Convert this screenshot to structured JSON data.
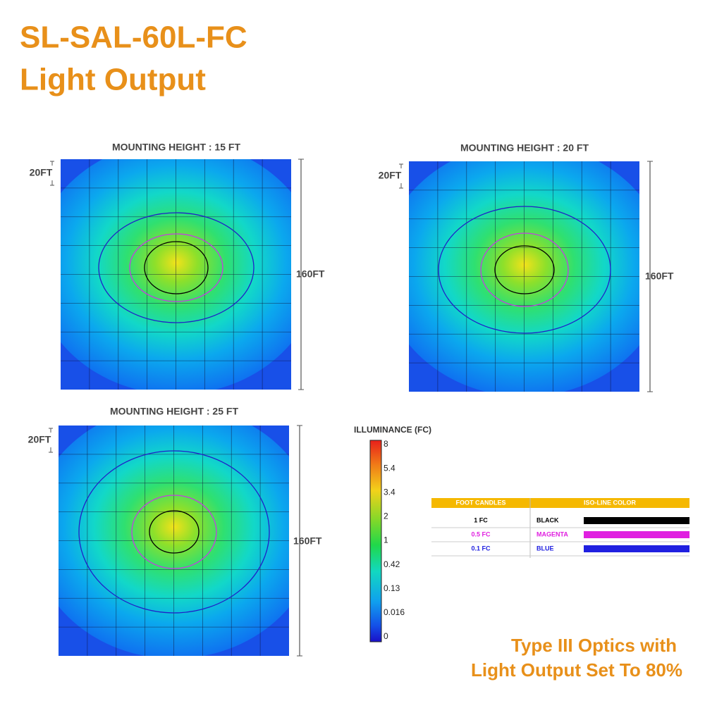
{
  "header": {
    "title_line1": "SL-SAL-60L-FC",
    "title_line2": "Light Output"
  },
  "plots": [
    {
      "title": "MOUNTING HEIGHT : 15 FT",
      "scale_label": "20FT",
      "size_label": "160FT"
    },
    {
      "title": "MOUNTING HEIGHT : 20 FT",
      "scale_label": "20FT",
      "size_label": "160FT"
    },
    {
      "title": "MOUNTING HEIGHT : 25 FT",
      "scale_label": "20FT",
      "size_label": "160FT"
    }
  ],
  "colorbar": {
    "title": "ILLUMINANCE (FC)",
    "ticks": [
      "8",
      "5.4",
      "3.4",
      "2",
      "1",
      "0.42",
      "0.13",
      "0.016",
      "0"
    ]
  },
  "legend_table": {
    "headers": [
      "FOOT CANDLES",
      "ISO-LINE COLOR"
    ],
    "rows": [
      [
        "1 FC",
        "BLACK"
      ],
      [
        "0.5 FC",
        "MAGENTA"
      ],
      [
        "0.1 FC",
        "BLUE"
      ]
    ]
  },
  "footer": {
    "line1": "Type III Optics with",
    "line2": "Light Output Set To 80%"
  }
}
